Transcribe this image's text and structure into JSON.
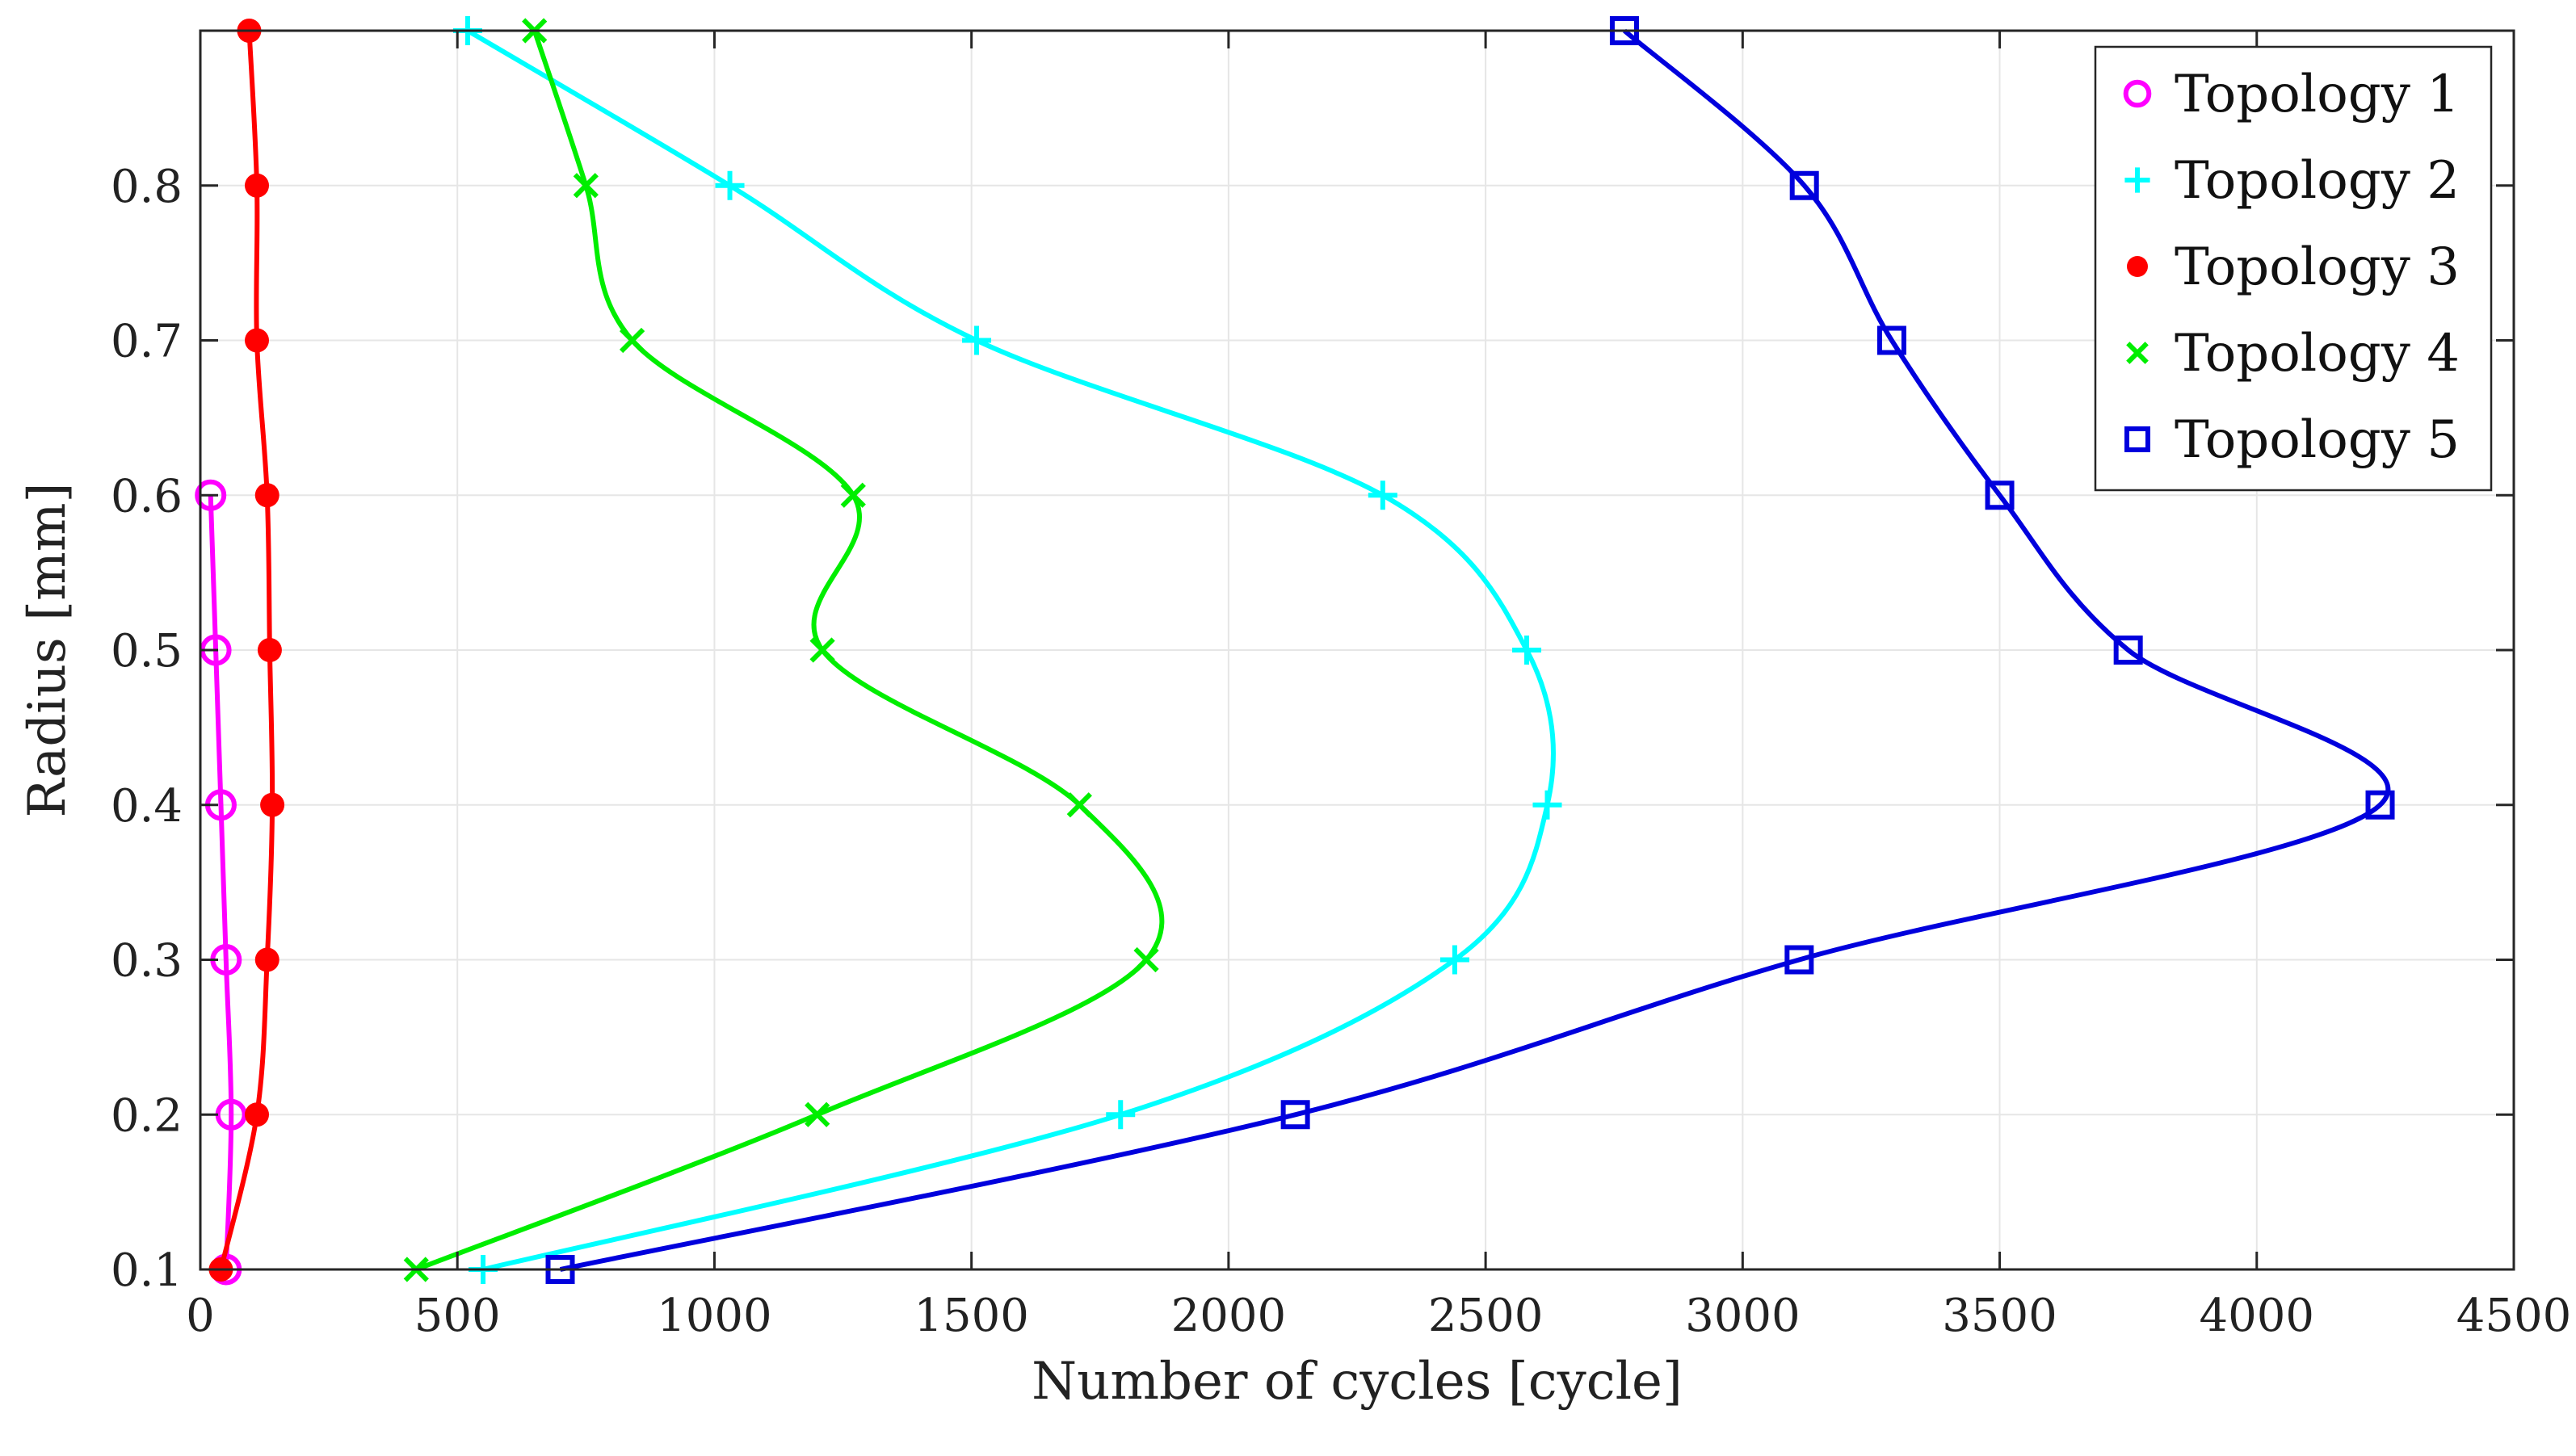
{
  "chart_data": {
    "type": "line",
    "title": "",
    "xlabel": "Number of cycles [cycle]",
    "ylabel": "Radius [mm]",
    "xlim": [
      0,
      4500
    ],
    "ylim": [
      0.1,
      0.9
    ],
    "xticks": [
      0,
      500,
      1000,
      1500,
      2000,
      2500,
      3000,
      3500,
      4000,
      4500
    ],
    "yticks": [
      0.1,
      0.2,
      0.3,
      0.4,
      0.5,
      0.6,
      0.7,
      0.8
    ],
    "xtick_labels": [
      "0",
      "500",
      "1000",
      "1500",
      "2000",
      "2500",
      "3000",
      "3500",
      "4000",
      "4500"
    ],
    "ytick_labels": [
      "0.1",
      "0.2",
      "0.3",
      "0.4",
      "0.5",
      "0.6",
      "0.7",
      "0.8"
    ],
    "grid": true,
    "legend_position": "top-right",
    "series": [
      {
        "name": "Topology 1",
        "color": "#ff00ff",
        "marker": "circle",
        "points": [
          [
            50,
            0.1
          ],
          [
            60,
            0.2
          ],
          [
            50,
            0.3
          ],
          [
            40,
            0.4
          ],
          [
            30,
            0.5
          ],
          [
            20,
            0.6
          ]
        ]
      },
      {
        "name": "Topology 2",
        "color": "#00ffff",
        "marker": "plus",
        "points": [
          [
            550,
            0.1
          ],
          [
            1790,
            0.2
          ],
          [
            2440,
            0.3
          ],
          [
            2620,
            0.4
          ],
          [
            2580,
            0.5
          ],
          [
            2300,
            0.6
          ],
          [
            1510,
            0.7
          ],
          [
            1030,
            0.8
          ],
          [
            520,
            0.9
          ]
        ]
      },
      {
        "name": "Topology 3",
        "color": "#ff0000",
        "marker": "dot",
        "points": [
          [
            40,
            0.1
          ],
          [
            110,
            0.2
          ],
          [
            130,
            0.3
          ],
          [
            140,
            0.4
          ],
          [
            135,
            0.5
          ],
          [
            130,
            0.6
          ],
          [
            110,
            0.7
          ],
          [
            110,
            0.8
          ],
          [
            95,
            0.9
          ]
        ]
      },
      {
        "name": "Topology 4",
        "color": "#00ee00",
        "marker": "x",
        "points": [
          [
            420,
            0.1
          ],
          [
            1200,
            0.2
          ],
          [
            1840,
            0.3
          ],
          [
            1710,
            0.4
          ],
          [
            1210,
            0.5
          ],
          [
            1270,
            0.6
          ],
          [
            840,
            0.7
          ],
          [
            750,
            0.8
          ],
          [
            650,
            0.9
          ]
        ]
      },
      {
        "name": "Topology 5",
        "color": "#0000dd",
        "marker": "square",
        "points": [
          [
            700,
            0.1
          ],
          [
            2130,
            0.2
          ],
          [
            3110,
            0.3
          ],
          [
            4240,
            0.4
          ],
          [
            3750,
            0.5
          ],
          [
            3500,
            0.6
          ],
          [
            3290,
            0.7
          ],
          [
            3120,
            0.8
          ],
          [
            2770,
            0.9
          ]
        ]
      }
    ]
  }
}
